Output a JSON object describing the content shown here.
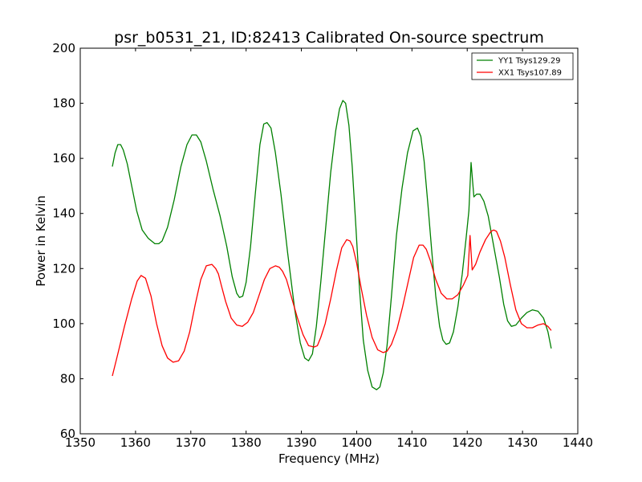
{
  "chart_data": {
    "type": "line",
    "title": "psr_b0531_21, ID:82413 Calibrated On-source spectrum",
    "xlabel": "Frequency (MHz)",
    "ylabel": "Power in Kelvin",
    "xlim": [
      1350,
      1440
    ],
    "ylim": [
      60,
      200
    ],
    "xticks": [
      1350,
      1360,
      1370,
      1380,
      1390,
      1400,
      1410,
      1420,
      1430,
      1440
    ],
    "yticks": [
      60,
      80,
      100,
      120,
      140,
      160,
      180,
      200
    ],
    "grid": false,
    "legend_position": "top-right",
    "series": [
      {
        "name": "YY1 Tsys129.29",
        "color": "#008000",
        "x": [
          1355.8,
          1356.3,
          1356.8,
          1357.3,
          1357.8,
          1358.5,
          1359.3,
          1360.2,
          1361.2,
          1362.3,
          1363.5,
          1364.2,
          1364.8,
          1365.8,
          1367.0,
          1368.2,
          1369.3,
          1370.2,
          1371.0,
          1371.8,
          1372.8,
          1374.0,
          1375.3,
          1376.5,
          1377.5,
          1378.3,
          1378.8,
          1379.4,
          1380.0,
          1380.8,
          1381.7,
          1382.5,
          1383.2,
          1383.8,
          1384.5,
          1385.3,
          1386.3,
          1387.5,
          1388.8,
          1389.8,
          1390.6,
          1391.3,
          1392.0,
          1392.7,
          1393.5,
          1394.4,
          1395.3,
          1396.2,
          1396.9,
          1397.5,
          1398.0,
          1398.6,
          1399.2,
          1399.8,
          1400.5,
          1401.2,
          1402.0,
          1402.8,
          1403.6,
          1404.2,
          1404.8,
          1405.5,
          1406.3,
          1407.2,
          1408.2,
          1409.2,
          1410.2,
          1411.0,
          1411.6,
          1412.2,
          1412.9,
          1413.6,
          1414.3,
          1415.0,
          1415.6,
          1416.2,
          1416.8,
          1417.5,
          1418.3,
          1419.1,
          1419.8,
          1420.3,
          1420.7,
          1421.2,
          1421.7,
          1422.3,
          1423.0,
          1423.8,
          1424.8,
          1425.8,
          1426.6,
          1427.3,
          1428.0,
          1428.8,
          1429.8,
          1430.8,
          1431.8,
          1432.8,
          1433.8,
          1434.6,
          1435.2
        ],
        "y": [
          157,
          162,
          165,
          165,
          163,
          158,
          150,
          141,
          134,
          131,
          129,
          129,
          130,
          135,
          145,
          157,
          165,
          168.5,
          168.5,
          166,
          159,
          149,
          139,
          128,
          117,
          111,
          109.5,
          110,
          115,
          128,
          148,
          165,
          172.5,
          173,
          171,
          162,
          147,
          126,
          105,
          93,
          87.5,
          86.5,
          89,
          99,
          115,
          135,
          155,
          170,
          178,
          181,
          180,
          172,
          157,
          137,
          113,
          94,
          83,
          77,
          76,
          77,
          82,
          92,
          110,
          132,
          149,
          162,
          170,
          171,
          168,
          159,
          143,
          126,
          110,
          99,
          94,
          92.5,
          93,
          97,
          106,
          118,
          131,
          141,
          158.5,
          146,
          147,
          147,
          144.5,
          139,
          128,
          117,
          107,
          101,
          99,
          99.5,
          102,
          104,
          105,
          104.5,
          102,
          97,
          91
        ]
      },
      {
        "name": "XX1 Tsys107.89",
        "color": "#ff0000",
        "x": [
          1355.8,
          1356.8,
          1358.0,
          1359.3,
          1360.3,
          1361.0,
          1361.8,
          1362.8,
          1363.8,
          1364.8,
          1365.8,
          1366.8,
          1367.8,
          1368.8,
          1369.8,
          1370.8,
          1371.8,
          1372.8,
          1373.8,
          1374.5,
          1375.0,
          1375.5,
          1376.3,
          1377.3,
          1378.3,
          1379.3,
          1380.3,
          1381.3,
          1382.3,
          1383.3,
          1384.3,
          1385.3,
          1386.0,
          1386.6,
          1387.3,
          1388.3,
          1389.3,
          1390.3,
          1391.3,
          1392.3,
          1392.9,
          1393.5,
          1394.3,
          1395.3,
          1396.3,
          1397.3,
          1398.2,
          1398.8,
          1399.3,
          1400.0,
          1400.8,
          1401.8,
          1402.8,
          1403.8,
          1404.8,
          1405.5,
          1406.3,
          1407.3,
          1408.3,
          1409.3,
          1410.3,
          1411.3,
          1412.0,
          1412.6,
          1413.3,
          1414.3,
          1415.3,
          1416.3,
          1417.3,
          1418.3,
          1419.3,
          1420.1,
          1420.5,
          1420.9,
          1421.5,
          1422.3,
          1423.3,
          1424.3,
          1424.8,
          1425.3,
          1426.0,
          1426.8,
          1427.8,
          1428.8,
          1429.8,
          1430.8,
          1431.8,
          1432.8,
          1433.8,
          1434.6,
          1435.2
        ],
        "y": [
          81,
          89,
          99,
          109,
          115.5,
          117.5,
          116.5,
          110,
          100,
          92,
          87.5,
          86,
          86.5,
          90,
          97,
          107,
          116,
          121,
          121.5,
          120,
          118,
          114,
          108,
          102,
          99.5,
          99,
          100.5,
          104,
          110,
          116,
          120,
          121,
          120.5,
          119,
          116,
          109,
          102,
          96,
          92,
          91.5,
          92,
          95,
          100,
          109,
          119,
          127.5,
          130.5,
          130,
          128,
          122,
          113,
          103,
          95,
          90.5,
          89.5,
          90,
          92.5,
          98,
          106,
          115,
          124,
          128.5,
          128.5,
          127,
          123,
          116,
          111,
          109,
          109,
          110.5,
          114,
          117.5,
          132,
          119.5,
          121.5,
          126,
          130.5,
          133.5,
          134,
          133.5,
          130,
          124,
          114,
          105,
          100,
          98.5,
          98.5,
          99.5,
          100,
          99,
          97.5
        ]
      }
    ]
  }
}
